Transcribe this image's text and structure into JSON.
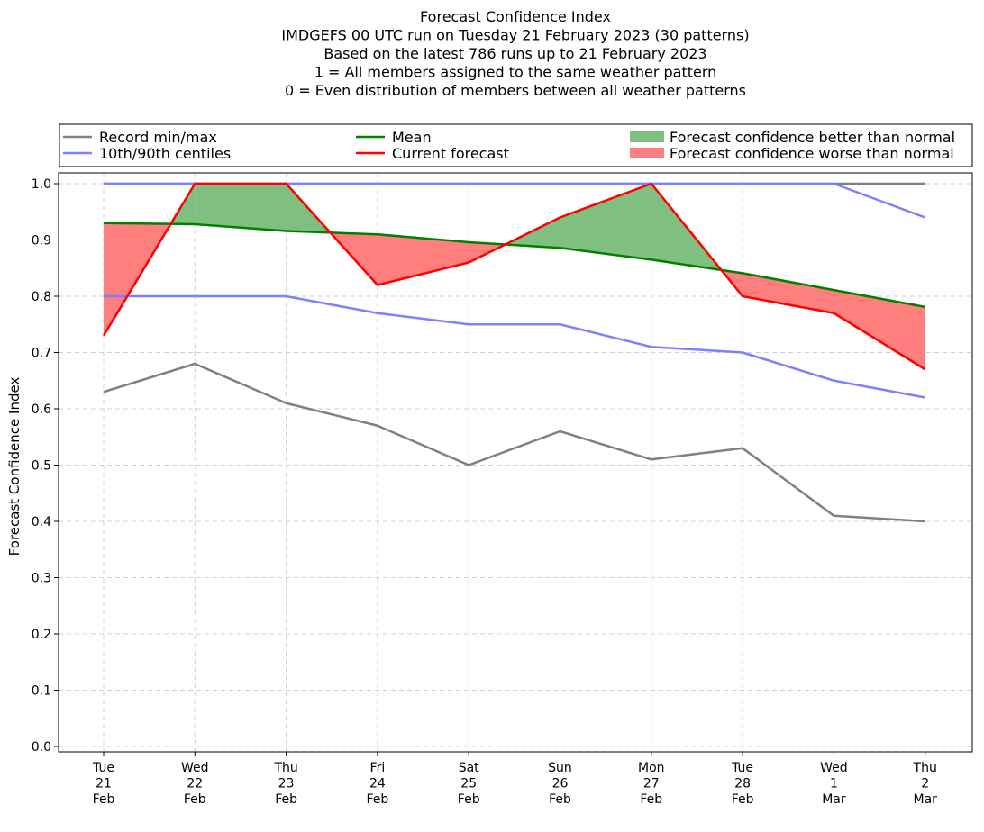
{
  "chart_data": {
    "type": "line",
    "title_lines": [
      "Forecast Confidence Index",
      "IMDGEFS 00 UTC run on Tuesday 21 February 2023 (30 patterns)",
      "Based on the latest 786 runs up to 21 February 2023",
      "1 = All members assigned to the same weather pattern",
      "0 = Even distribution of members between all weather patterns"
    ],
    "ylabel": "Forecast Confidence Index",
    "ylim": [
      0,
      1
    ],
    "yticks": [
      "0.0",
      "0.1",
      "0.2",
      "0.3",
      "0.4",
      "0.5",
      "0.6",
      "0.7",
      "0.8",
      "0.9",
      "1.0"
    ],
    "categories": [
      [
        "Tue",
        "21",
        "Feb"
      ],
      [
        "Wed",
        "22",
        "Feb"
      ],
      [
        "Thu",
        "23",
        "Feb"
      ],
      [
        "Fri",
        "24",
        "Feb"
      ],
      [
        "Sat",
        "25",
        "Feb"
      ],
      [
        "Sun",
        "26",
        "Feb"
      ],
      [
        "Mon",
        "27",
        "Feb"
      ],
      [
        "Tue",
        "28",
        "Feb"
      ],
      [
        "Wed",
        "1",
        "Mar"
      ],
      [
        "Thu",
        "2",
        "Mar"
      ]
    ],
    "grid": true,
    "legend_position": "top",
    "series": [
      {
        "key": "record_min",
        "legend": "Record min/max",
        "color": "#808080",
        "values": [
          0.63,
          0.68,
          0.61,
          0.57,
          0.5,
          0.56,
          0.51,
          0.53,
          0.41,
          0.4
        ]
      },
      {
        "key": "record_max",
        "color": "#808080",
        "values": [
          1.0,
          1.0,
          1.0,
          1.0,
          1.0,
          1.0,
          1.0,
          1.0,
          1.0,
          1.0
        ]
      },
      {
        "key": "p10",
        "legend": "10th/90th centiles",
        "color": "#7f7fff",
        "values": [
          0.8,
          0.8,
          0.8,
          0.77,
          0.75,
          0.75,
          0.71,
          0.7,
          0.65,
          0.62
        ]
      },
      {
        "key": "p90",
        "color": "#7f7fff",
        "values": [
          1.0,
          1.0,
          1.0,
          1.0,
          1.0,
          1.0,
          1.0,
          1.0,
          1.0,
          0.94
        ]
      },
      {
        "key": "mean",
        "legend": "Mean",
        "color": "#008000",
        "values": [
          0.93,
          0.928,
          0.916,
          0.91,
          0.896,
          0.886,
          0.865,
          0.841,
          0.811,
          0.781
        ]
      },
      {
        "key": "current",
        "legend": "Current forecast",
        "color": "#ff0000",
        "values": [
          0.73,
          1.0,
          1.0,
          0.82,
          0.86,
          0.94,
          1.0,
          0.8,
          0.77,
          0.67
        ]
      }
    ],
    "fills": [
      {
        "legend": "Forecast confidence better than normal",
        "color": "#7fbf7f"
      },
      {
        "legend": "Forecast confidence worse than normal",
        "color": "#ff7f7f"
      }
    ]
  }
}
